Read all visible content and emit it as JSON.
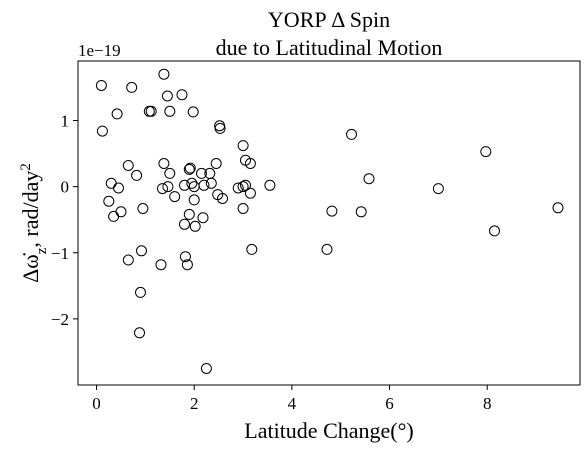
{
  "chart_data": {
    "type": "scatter",
    "title": "YORP Δ Spin",
    "subtitle": "due to Latitudinal Motion",
    "xlabel": "Latitude Change(°)",
    "ylabel_main": "Δω̇",
    "ylabel_sub": "z",
    "ylabel_unit": ", rad/day",
    "ylabel_sup": "2",
    "y_offset_text": "1e−19",
    "xlim": [
      -0.38,
      9.9
    ],
    "ylim": [
      -3.0,
      1.9
    ],
    "x_ticks": [
      0,
      2,
      4,
      6,
      8
    ],
    "x_tick_labels": [
      "0",
      "2",
      "4",
      "6",
      "8"
    ],
    "y_ticks": [
      1,
      0,
      -1,
      -2
    ],
    "y_tick_labels": [
      "1",
      "0",
      "−1",
      "−2"
    ],
    "marker": "open-circle",
    "marker_edge_color": "#000000",
    "grid": false,
    "points": [
      [
        0.1,
        1.53
      ],
      [
        0.12,
        0.84
      ],
      [
        0.42,
        1.1
      ],
      [
        0.72,
        1.5
      ],
      [
        1.08,
        1.14
      ],
      [
        1.12,
        1.14
      ],
      [
        1.38,
        1.7
      ],
      [
        1.45,
        1.37
      ],
      [
        1.5,
        1.14
      ],
      [
        1.75,
        1.39
      ],
      [
        1.98,
        1.13
      ],
      [
        2.52,
        0.92
      ],
      [
        2.53,
        0.88
      ],
      [
        3.0,
        0.62
      ],
      [
        3.05,
        0.4
      ],
      [
        3.15,
        0.35
      ],
      [
        5.22,
        0.79
      ],
      [
        7.97,
        0.53
      ],
      [
        0.65,
        0.32
      ],
      [
        0.82,
        0.17
      ],
      [
        1.38,
        0.35
      ],
      [
        1.5,
        0.2
      ],
      [
        1.9,
        0.26
      ],
      [
        1.92,
        0.28
      ],
      [
        2.15,
        0.2
      ],
      [
        2.32,
        0.2
      ],
      [
        2.45,
        0.35
      ],
      [
        2.58,
        -0.18
      ],
      [
        0.3,
        0.05
      ],
      [
        0.45,
        -0.02
      ],
      [
        1.35,
        -0.03
      ],
      [
        1.46,
        0.0
      ],
      [
        1.6,
        -0.15
      ],
      [
        1.8,
        0.02
      ],
      [
        1.95,
        0.05
      ],
      [
        2.0,
        0.0
      ],
      [
        2.2,
        0.02
      ],
      [
        2.35,
        0.05
      ],
      [
        2.48,
        -0.12
      ],
      [
        2.9,
        -0.02
      ],
      [
        3.0,
        0.0
      ],
      [
        3.05,
        0.02
      ],
      [
        3.15,
        -0.1
      ],
      [
        3.55,
        0.02
      ],
      [
        5.58,
        0.12
      ],
      [
        7.0,
        -0.03
      ],
      [
        0.25,
        -0.22
      ],
      [
        0.35,
        -0.45
      ],
      [
        0.5,
        -0.38
      ],
      [
        0.95,
        -0.33
      ],
      [
        1.8,
        -0.57
      ],
      [
        1.9,
        -0.42
      ],
      [
        2.0,
        -0.2
      ],
      [
        2.02,
        -0.6
      ],
      [
        2.18,
        -0.47
      ],
      [
        3.0,
        -0.33
      ],
      [
        4.82,
        -0.37
      ],
      [
        5.42,
        -0.38
      ],
      [
        9.45,
        -0.32
      ],
      [
        8.15,
        -0.67
      ],
      [
        0.65,
        -1.11
      ],
      [
        0.92,
        -0.97
      ],
      [
        1.32,
        -1.18
      ],
      [
        1.82,
        -1.06
      ],
      [
        1.86,
        -1.18
      ],
      [
        3.18,
        -0.95
      ],
      [
        4.72,
        -0.95
      ],
      [
        0.9,
        -1.6
      ],
      [
        0.88,
        -2.21
      ],
      [
        2.25,
        -2.75
      ]
    ]
  }
}
